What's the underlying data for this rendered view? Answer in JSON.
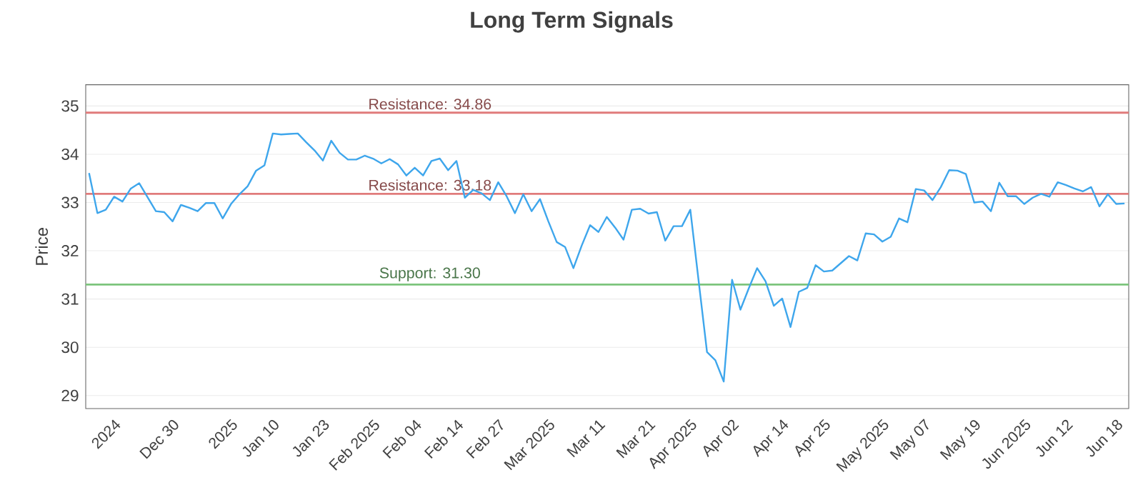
{
  "chart_data": {
    "type": "line",
    "title": "Long Term Signals",
    "ylabel": "Price",
    "categories": [
      null,
      null,
      null,
      "2024",
      null,
      null,
      null,
      null,
      null,
      null,
      "Dec 30",
      null,
      null,
      null,
      null,
      null,
      null,
      "2025",
      null,
      null,
      null,
      null,
      "Jan 10",
      null,
      null,
      null,
      null,
      null,
      "Jan 23",
      null,
      null,
      null,
      null,
      null,
      "Feb 2025",
      null,
      null,
      null,
      null,
      "Feb 04",
      null,
      null,
      null,
      null,
      "Feb 14",
      null,
      null,
      null,
      null,
      "Feb 27",
      null,
      null,
      null,
      null,
      null,
      "Mar 2025",
      null,
      null,
      null,
      null,
      null,
      "Mar 11",
      null,
      null,
      null,
      null,
      null,
      "Mar 21",
      null,
      null,
      null,
      null,
      "Apr 2025",
      null,
      null,
      null,
      null,
      "Apr 02",
      null,
      null,
      null,
      null,
      null,
      "Apr 14",
      null,
      null,
      null,
      null,
      "Apr 25",
      null,
      null,
      null,
      null,
      null,
      null,
      "May 2025",
      null,
      null,
      null,
      null,
      "May 07",
      null,
      null,
      null,
      null,
      null,
      "May 19",
      null,
      null,
      null,
      null,
      null,
      "Jun 2025",
      null,
      null,
      null,
      null,
      "Jun 12",
      null,
      null,
      null,
      null,
      null,
      "Jun 18",
      null
    ],
    "series": [
      {
        "color": "#3ea6ec",
        "values": [
          33.61,
          32.78,
          32.85,
          33.12,
          33.02,
          33.29,
          33.4,
          33.11,
          32.82,
          32.8,
          32.61,
          32.95,
          32.89,
          32.82,
          32.99,
          32.99,
          32.67,
          32.97,
          33.17,
          33.34,
          33.66,
          33.77,
          34.43,
          34.41,
          34.42,
          34.43,
          34.25,
          34.08,
          33.87,
          34.28,
          34.03,
          33.89,
          33.89,
          33.97,
          33.91,
          33.81,
          33.9,
          33.79,
          33.56,
          33.72,
          33.56,
          33.86,
          33.91,
          33.67,
          33.86,
          33.1,
          33.26,
          33.19,
          33.05,
          33.42,
          33.13,
          32.78,
          33.17,
          32.82,
          33.07,
          32.61,
          32.18,
          32.08,
          31.64,
          32.11,
          32.53,
          32.39,
          32.7,
          32.48,
          32.23,
          32.85,
          32.87,
          32.77,
          32.8,
          32.21,
          32.51,
          32.51,
          32.85,
          31.37,
          29.9,
          29.73,
          29.29,
          31.4,
          30.78,
          31.22,
          31.64,
          31.37,
          30.86,
          31.01,
          30.42,
          31.15,
          31.23,
          31.7,
          31.57,
          31.59,
          31.74,
          31.89,
          31.8,
          32.36,
          32.34,
          32.19,
          32.29,
          32.67,
          32.59,
          33.28,
          33.25,
          33.05,
          33.32,
          33.67,
          33.66,
          33.59,
          33.0,
          33.02,
          32.82,
          33.41,
          33.13,
          33.13,
          32.97,
          33.1,
          33.18,
          33.12,
          33.42,
          33.36,
          33.29,
          33.23,
          33.32,
          32.92,
          33.17,
          32.97,
          32.98
        ]
      }
    ],
    "ylim": [
      28.73,
      35.44
    ],
    "yticks": [
      29,
      30,
      31,
      32,
      33,
      34,
      35
    ],
    "ref_lines": [
      {
        "axis": "y",
        "value": 34.86,
        "label": "Resistance: 34.86",
        "color": "#e07b7b"
      },
      {
        "axis": "y",
        "value": 33.18,
        "label": "Resistance: 33.18",
        "color": "#e07b7b"
      },
      {
        "axis": "y",
        "value": 31.3,
        "label": "Support: 31.30",
        "color": "#7cc47c"
      }
    ],
    "grid": "y",
    "marker": "none",
    "line_style": "solid"
  }
}
